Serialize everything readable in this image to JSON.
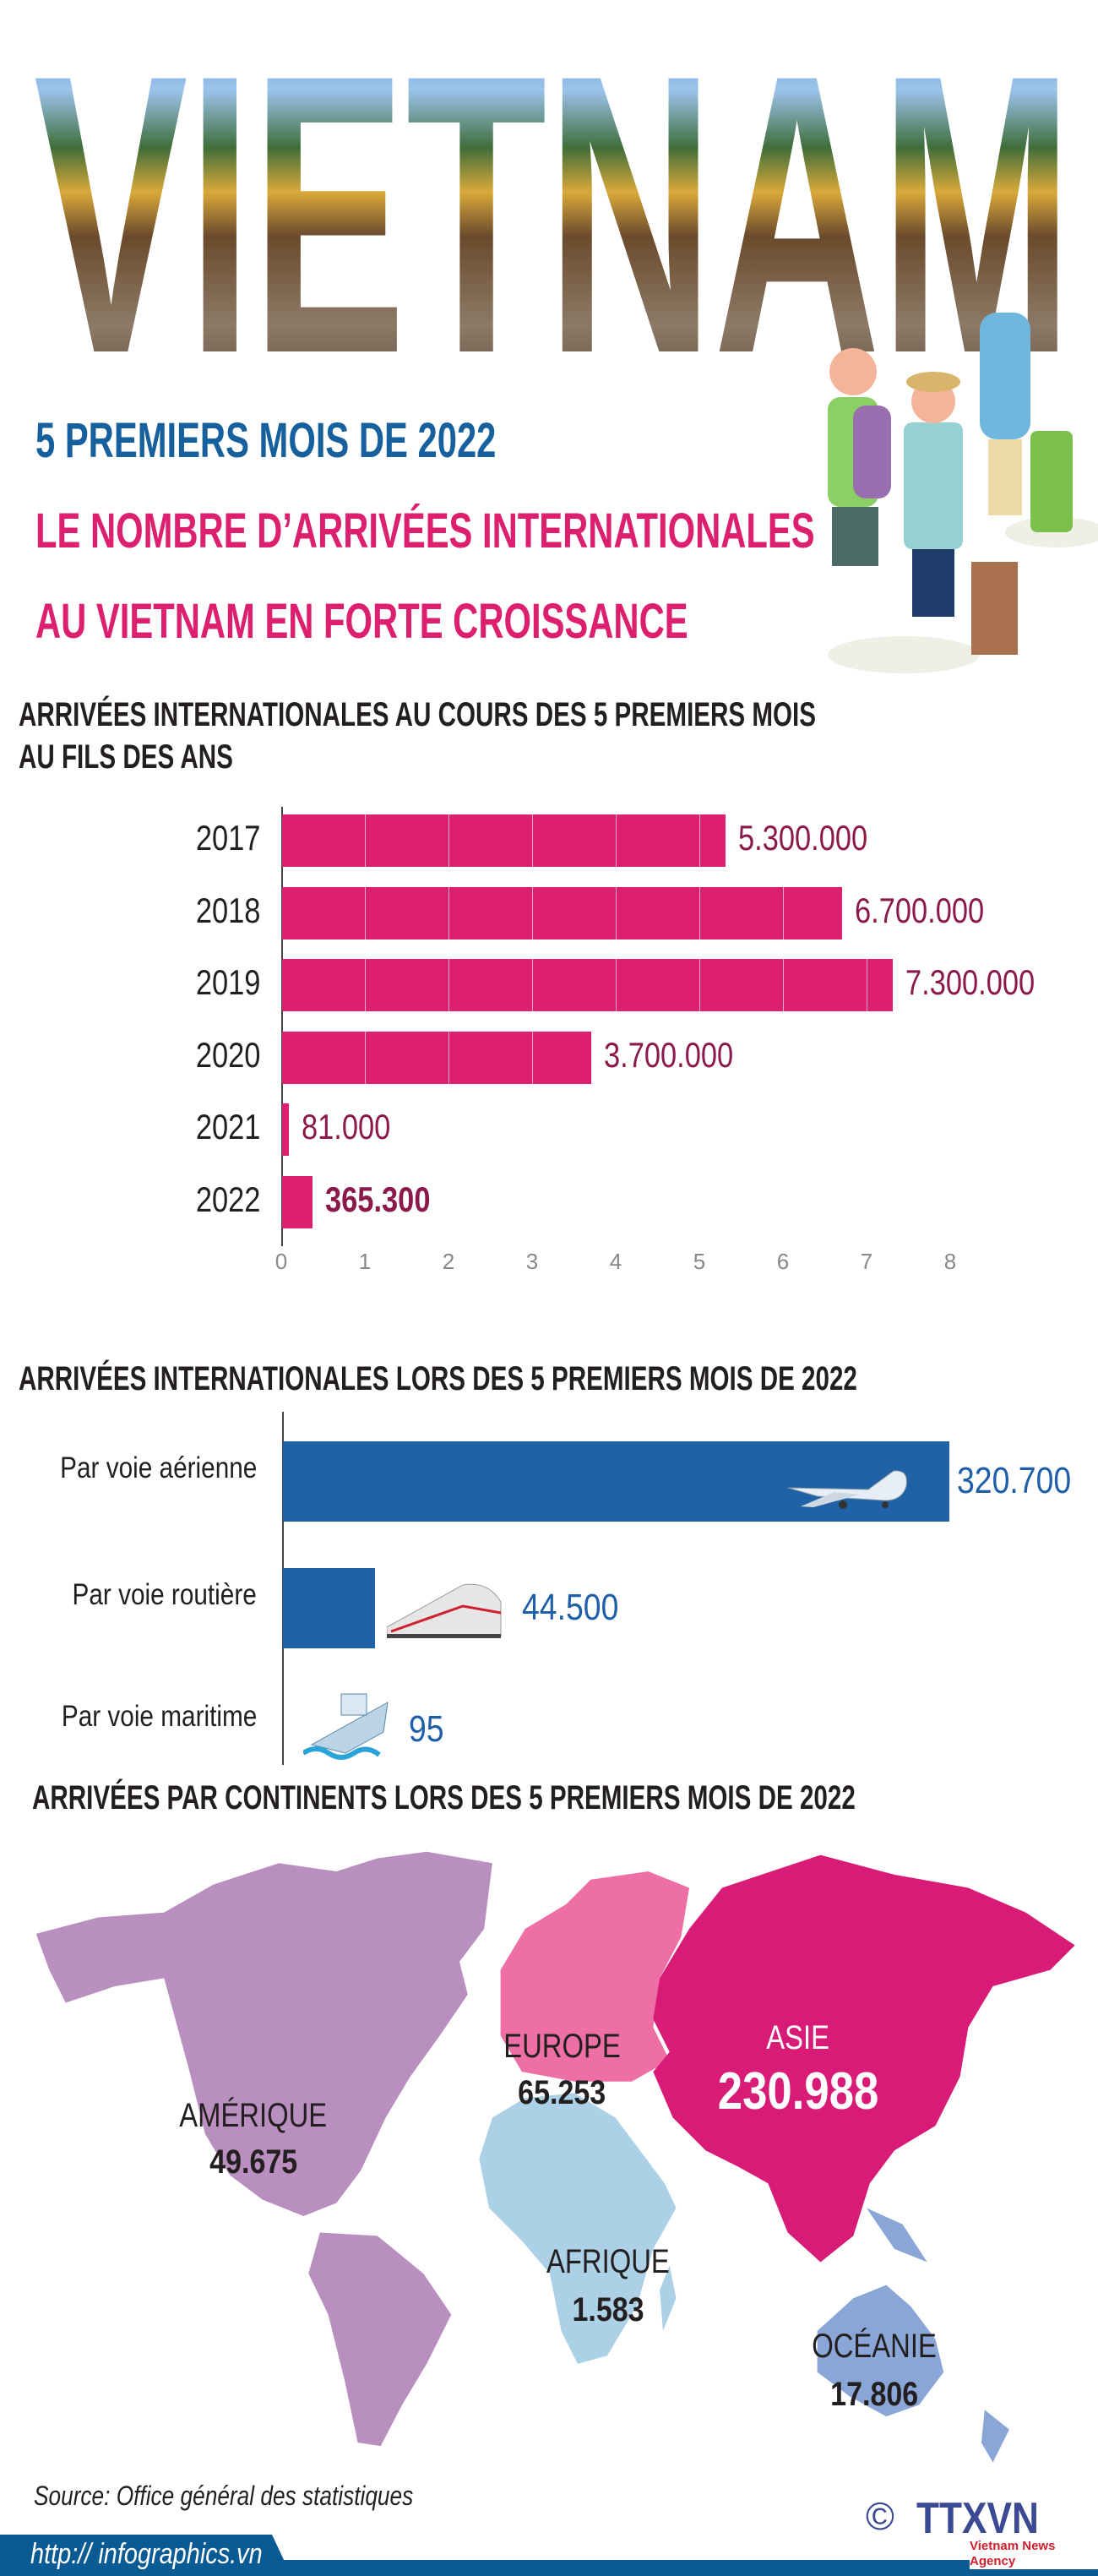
{
  "banner": {
    "word": "VIETNAM"
  },
  "titles": {
    "line1": "5 PREMIERS MOIS DE 2022",
    "line2": "LE NOMBRE D’ARRIVÉES INTERNATIONALES",
    "line3": "AU VIETNAM EN FORTE CROISSANCE",
    "color1": "#17609e",
    "color2": "#dc1f6e"
  },
  "chart_data": [
    {
      "type": "bar",
      "orientation": "horizontal",
      "title": "ARRIVÉES INTERNATIONALES AU COURS DES 5 PREMIERS MOIS AU FILS DES ANS",
      "title_line1": "ARRIVÉES INTERNATIONALES AU COURS DES 5 PREMIERS MOIS",
      "title_line2": "AU FILS DES ANS",
      "categories": [
        "2017",
        "2018",
        "2019",
        "2020",
        "2021",
        "2022"
      ],
      "values": [
        5300000,
        6700000,
        7300000,
        3700000,
        81000,
        365300
      ],
      "value_labels": [
        "5.300.000",
        "6.700.000",
        "7.300.000",
        "3.700.000",
        "81.000",
        "365.300"
      ],
      "xticks": [
        "0",
        "1",
        "2",
        "3",
        "4",
        "5",
        "6",
        "7",
        "8"
      ],
      "xlim": [
        0,
        8
      ],
      "unit_scale": 1000000,
      "bar_color": "#dc1f6e",
      "label_color": "#8b1a4a",
      "highlight": "2022"
    },
    {
      "type": "bar",
      "orientation": "horizontal",
      "title": "ARRIVÉES INTERNATIONALES LORS DES 5 PREMIERS MOIS DE 2022",
      "categories": [
        "Par voie aérienne",
        "Par voie routière",
        "Par voie maritime"
      ],
      "values": [
        320700,
        44500,
        95
      ],
      "value_labels": [
        "320.700",
        "44.500",
        "95"
      ],
      "icons": [
        "airplane-icon",
        "train-icon",
        "ship-icon"
      ],
      "bar_color": "#1f63a6",
      "label_color": "#1f5ea8"
    },
    {
      "type": "map",
      "title": "ARRIVÉES PAR CONTINENTS LORS DES 5 PREMIERS MOIS DE 2022",
      "regions": [
        {
          "name": "AMÉRIQUE",
          "value": 49675,
          "label": "49.675",
          "color": "#b98fbf"
        },
        {
          "name": "EUROPE",
          "value": 65253,
          "label": "65.253",
          "color": "#ee6fa5"
        },
        {
          "name": "ASIE",
          "value": 230988,
          "label": "230.988",
          "color": "#d81b76"
        },
        {
          "name": "AFRIQUE",
          "value": 1583,
          "label": "1.583",
          "color": "#acd1e6"
        },
        {
          "name": "OCÉANIE",
          "value": 17806,
          "label": "17.806",
          "color": "#8aa6d6"
        }
      ]
    }
  ],
  "footer": {
    "source": "Source: Office général des statistiques",
    "url": "http:// infographics.vn",
    "logo": "TTXVN",
    "logo_sub": "Vietnam News Agency",
    "copyright": "©",
    "bar_color": "#0a5a93"
  }
}
